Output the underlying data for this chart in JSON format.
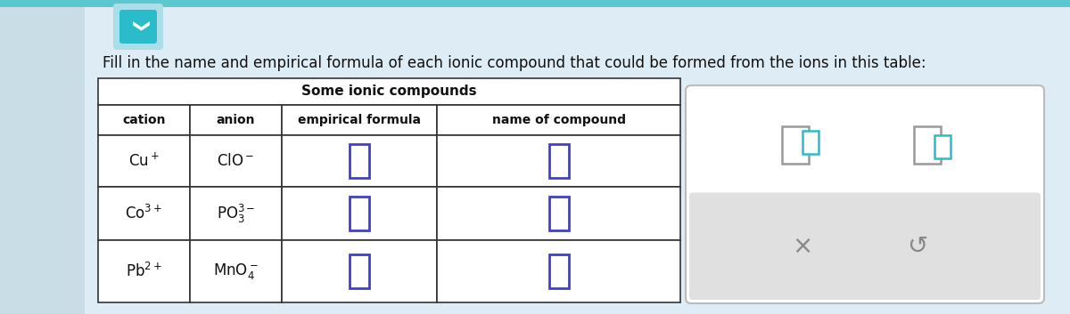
{
  "bg_top_strip": "#5bc8d0",
  "bg_left_strip": "#c8dde6",
  "bg_main": "#deedf5",
  "page_white": "#ffffff",
  "title_text": "Fill in the name and empirical formula of each ionic compound that could be formed from the ions in this table:",
  "table_title": "Some ionic compounds",
  "col_headers": [
    "cation",
    "anion",
    "empirical formula",
    "name of compound"
  ],
  "cations": [
    "Cu$^+$",
    "Co$^{3+}$",
    "Pb$^{2+}$"
  ],
  "anions": [
    "ClO$^-$",
    "PO$_3^{3-}$",
    "MnO$_4^-$"
  ],
  "checkbox_color": "#4040cc",
  "teal_color": "#2bbccc",
  "gray_color": "#888888",
  "font_color": "#111111",
  "chevron_bg": "#6ad0da",
  "chevron_inner": "#2bbccc",
  "panel_border": "#bbbbbb",
  "panel_gray_bg": "#e0e0e0",
  "table_border": "#333333",
  "title_font_size": 12,
  "header_font_size": 10,
  "cell_font_size": 11
}
